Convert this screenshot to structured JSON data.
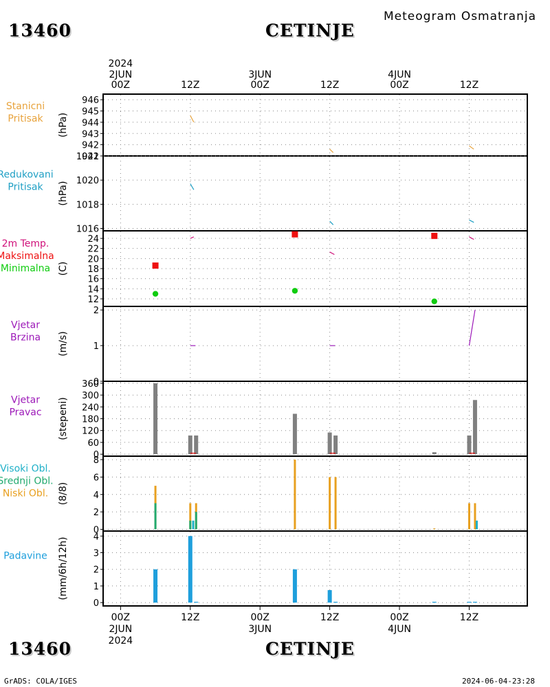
{
  "header": {
    "station_id": "13460",
    "station_name": "CETINJE",
    "title": "Meteogram  Osmatranja"
  },
  "footer": {
    "station_id": "13460",
    "station_name": "CETINJE",
    "credit": "GrADS: COLA/IGES",
    "timestamp": "2024-06-04-23:28"
  },
  "time_axis": {
    "year": "2024",
    "ticks": [
      {
        "hour": 0,
        "label": "00Z",
        "date": "2JUN",
        "year": "2024"
      },
      {
        "hour": 12,
        "label": "12Z",
        "date": "",
        "year": ""
      },
      {
        "hour": 24,
        "label": "00Z",
        "date": "3JUN",
        "year": ""
      },
      {
        "hour": 36,
        "label": "12Z",
        "date": "",
        "year": ""
      },
      {
        "hour": 48,
        "label": "00Z",
        "date": "4JUN",
        "year": ""
      },
      {
        "hour": 60,
        "label": "12Z",
        "date": "",
        "year": ""
      }
    ],
    "range_hours": [
      -3,
      70
    ]
  },
  "panels": [
    {
      "id": "station-pressure",
      "label_lines": [
        "Stanicni",
        "Pritisak"
      ],
      "label_color": "#e8a33c",
      "unit": "(hPa)",
      "ylim": [
        941,
        946.5
      ],
      "yticks": [
        941,
        942,
        943,
        944,
        945,
        946
      ],
      "series": [
        {
          "type": "line",
          "color": "#e8a33c",
          "segments": [
            [
              [
                12,
                944.6
              ],
              [
                12.6,
                944.0
              ]
            ],
            [
              [
                36,
                941.6
              ],
              [
                36.6,
                941.3
              ]
            ],
            [
              [
                60,
                941.9
              ],
              [
                60.8,
                941.6
              ]
            ]
          ]
        }
      ]
    },
    {
      "id": "reduced-pressure",
      "label_lines": [
        "Redukovani",
        "Pritisak"
      ],
      "label_color": "#1e9fc4",
      "unit": "(hPa)",
      "ylim": [
        1015.8,
        1022
      ],
      "yticks": [
        1016,
        1018,
        1020,
        1022
      ],
      "series": [
        {
          "type": "line",
          "color": "#1e9fc4",
          "segments": [
            [
              [
                12,
                1019.7
              ],
              [
                12.6,
                1019.2
              ]
            ],
            [
              [
                36,
                1016.6
              ],
              [
                36.6,
                1016.3
              ]
            ],
            [
              [
                60,
                1016.7
              ],
              [
                60.8,
                1016.5
              ]
            ]
          ]
        }
      ]
    },
    {
      "id": "temperature",
      "label_lines": [
        "2m Temp.",
        "Maksimalna",
        "Minimalna"
      ],
      "label_colors": [
        "#d0107a",
        "#ee1010",
        "#10cc10"
      ],
      "unit": "(C)",
      "ylim": [
        10.5,
        25.5
      ],
      "yticks": [
        12,
        14,
        16,
        18,
        20,
        22,
        24
      ],
      "series": [
        {
          "type": "line",
          "color": "#d0107a",
          "segments": [
            [
              [
                12,
                24.0
              ],
              [
                12.6,
                24.3
              ]
            ],
            [
              [
                36,
                21.3
              ],
              [
                36.8,
                20.8
              ]
            ],
            [
              [
                60,
                24.3
              ],
              [
                60.8,
                23.8
              ]
            ]
          ]
        },
        {
          "type": "square",
          "color": "#ee1010",
          "points": [
            [
              6,
              18.6
            ],
            [
              30,
              24.8
            ],
            [
              54,
              24.5
            ]
          ]
        },
        {
          "type": "circle",
          "color": "#10cc10",
          "points": [
            [
              6,
              13.0
            ],
            [
              30,
              13.6
            ],
            [
              54,
              11.5
            ]
          ]
        }
      ]
    },
    {
      "id": "wind-speed",
      "label_lines": [
        "Vjetar",
        "Brzina"
      ],
      "label_color": "#9c18b8",
      "unit": "(m/s)",
      "ylim": [
        0,
        2.1
      ],
      "yticks": [
        0,
        1,
        2
      ],
      "series": [
        {
          "type": "line",
          "color": "#9c18b8",
          "segments": [
            [
              [
                12,
                1.0
              ],
              [
                12.9,
                1.0
              ]
            ],
            [
              [
                36,
                1.0
              ],
              [
                36.9,
                1.0
              ]
            ],
            [
              [
                60,
                1.0
              ],
              [
                61,
                2.0
              ]
            ]
          ]
        }
      ]
    },
    {
      "id": "wind-direction",
      "label_lines": [
        "Vjetar",
        "Pravac"
      ],
      "label_color": "#9c18b8",
      "unit": "(stepeni)",
      "ylim": [
        -10,
        370
      ],
      "yticks": [
        0,
        60,
        120,
        180,
        240,
        300,
        360
      ],
      "series": [
        {
          "type": "bar",
          "color": "#808080",
          "bars": [
            [
              6,
              360
            ],
            [
              12,
              95
            ],
            [
              13,
              95
            ],
            [
              30,
              205
            ],
            [
              36,
              110
            ],
            [
              37,
              95
            ],
            [
              54,
              10
            ],
            [
              60,
              95
            ],
            [
              61,
              275
            ]
          ]
        },
        {
          "type": "line",
          "color": "#ee1010",
          "segments": [
            [
              [
                12,
                5
              ],
              [
                13,
                5
              ]
            ],
            [
              [
                36,
                5
              ],
              [
                37,
                5
              ]
            ],
            [
              [
                60,
                5
              ],
              [
                61,
                5
              ]
            ]
          ]
        }
      ]
    },
    {
      "id": "clouds",
      "label_lines": [
        "Visoki Obl.",
        "Srednji Obl.",
        "Niski Obl."
      ],
      "label_colors": [
        "#1eb0c8",
        "#22aa70",
        "#e8a020"
      ],
      "unit": "(8/8)",
      "ylim": [
        -0.2,
        8.4
      ],
      "yticks": [
        0,
        2,
        4,
        6,
        8
      ],
      "series": [
        {
          "type": "bar",
          "color": "#e8a020",
          "bars": [
            [
              6,
              5
            ],
            [
              12,
              3
            ],
            [
              13,
              3
            ],
            [
              30,
              8
            ],
            [
              36,
              6
            ],
            [
              37,
              6
            ],
            [
              54,
              0.1
            ],
            [
              60,
              3
            ],
            [
              61,
              3
            ]
          ]
        },
        {
          "type": "bar",
          "color": "#22aa70",
          "bars": [
            [
              6,
              3
            ],
            [
              12,
              1
            ],
            [
              13,
              2
            ]
          ]
        },
        {
          "type": "bar",
          "color": "#1eb0c8",
          "bars": [
            [
              12.5,
              1
            ],
            [
              61.3,
              1
            ]
          ]
        }
      ]
    },
    {
      "id": "precipitation",
      "label_lines": [
        "Padavine"
      ],
      "label_color": "#1e9fdc",
      "unit": "(mm/6h/12h)",
      "ylim": [
        -0.2,
        4.3
      ],
      "yticks": [
        0,
        1,
        2,
        3,
        4
      ],
      "series": [
        {
          "type": "bar",
          "color": "#1e9fdc",
          "bars": [
            [
              6,
              2
            ],
            [
              12,
              4
            ],
            [
              13,
              0.05
            ],
            [
              30,
              2
            ],
            [
              36,
              0.75
            ],
            [
              37,
              0.05
            ],
            [
              54,
              0.05
            ],
            [
              60,
              0.05
            ],
            [
              61,
              0.05
            ]
          ]
        }
      ]
    }
  ],
  "chart_data": {
    "type": "bar",
    "title": "Meteogram  Osmatranja",
    "xlabel": "",
    "ylabel": "",
    "grid": true,
    "x_unit": "hours since 2024-06-02 00Z",
    "series": [
      {
        "name": "Stanicni Pritisak (hPa)",
        "x": [
          12,
          36,
          60
        ],
        "values": [
          944.6,
          941.6,
          941.9
        ]
      },
      {
        "name": "Redukovani Pritisak (hPa)",
        "x": [
          12,
          36,
          60
        ],
        "values": [
          1019.7,
          1016.6,
          1016.7
        ]
      },
      {
        "name": "2m Temp. (C)",
        "x": [
          12,
          36,
          60
        ],
        "values": [
          24.0,
          21.3,
          24.3
        ]
      },
      {
        "name": "Maksimalna (C)",
        "x": [
          6,
          30,
          54
        ],
        "values": [
          18.6,
          24.8,
          24.5
        ]
      },
      {
        "name": "Minimalna (C)",
        "x": [
          6,
          30,
          54
        ],
        "values": [
          13.0,
          13.6,
          11.5
        ]
      },
      {
        "name": "Vjetar Brzina (m/s)",
        "x": [
          12,
          36,
          60,
          61
        ],
        "values": [
          1,
          1,
          1,
          2
        ]
      },
      {
        "name": "Vjetar Pravac (stepeni)",
        "x": [
          6,
          12,
          13,
          30,
          36,
          37,
          54,
          60,
          61
        ],
        "values": [
          360,
          95,
          95,
          205,
          110,
          95,
          10,
          95,
          275
        ]
      },
      {
        "name": "Niski Obl. (8/8)",
        "x": [
          6,
          12,
          13,
          30,
          36,
          37,
          60,
          61
        ],
        "values": [
          5,
          3,
          3,
          8,
          6,
          6,
          3,
          3
        ]
      },
      {
        "name": "Padavine (mm/6h/12h)",
        "x": [
          6,
          12,
          30,
          36
        ],
        "values": [
          2,
          4,
          2,
          0.75
        ]
      }
    ]
  }
}
